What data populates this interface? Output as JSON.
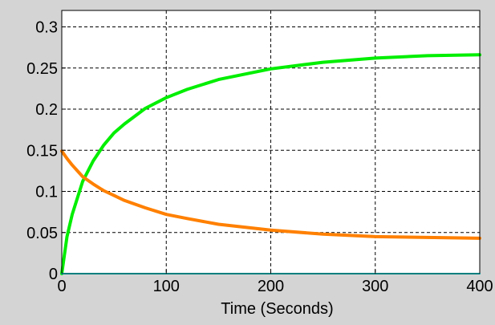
{
  "chart_data": {
    "type": "line",
    "title": "",
    "xlabel": "Time (Seconds)",
    "ylabel": "",
    "xlim": [
      0,
      400
    ],
    "ylim": [
      0,
      0.32
    ],
    "xticks": [
      0,
      100,
      200,
      300,
      400
    ],
    "xtick_labels": [
      "0",
      "100",
      "200",
      "300",
      "400"
    ],
    "yticks": [
      0,
      0.05,
      0.1,
      0.15,
      0.2,
      0.25,
      0.3
    ],
    "ytick_labels": [
      "0",
      "0.05",
      "0.1",
      "0.15",
      "0.2",
      "0.25",
      "0.3"
    ],
    "grid": true,
    "grid_style": "dashed",
    "background_color": "#ffffff",
    "frame_color": "#d4d4d4",
    "series": [
      {
        "color": "#00ee00",
        "x": [
          0,
          5,
          10,
          20,
          30,
          40,
          50,
          60,
          80,
          100,
          120,
          150,
          200,
          250,
          300,
          350,
          400
        ],
        "values": [
          0,
          0.045,
          0.072,
          0.112,
          0.137,
          0.156,
          0.171,
          0.182,
          0.201,
          0.214,
          0.224,
          0.236,
          0.249,
          0.257,
          0.262,
          0.265,
          0.266
        ]
      },
      {
        "color": "#ff8000",
        "x": [
          0,
          5,
          10,
          20,
          30,
          40,
          50,
          60,
          80,
          100,
          120,
          150,
          200,
          250,
          300,
          350,
          400
        ],
        "values": [
          0.149,
          0.14,
          0.132,
          0.118,
          0.109,
          0.101,
          0.095,
          0.089,
          0.08,
          0.072,
          0.067,
          0.06,
          0.053,
          0.048,
          0.045,
          0.044,
          0.043
        ]
      },
      {
        "color": "#00ffff",
        "x": [
          0,
          400
        ],
        "values": [
          0,
          0
        ]
      }
    ]
  }
}
